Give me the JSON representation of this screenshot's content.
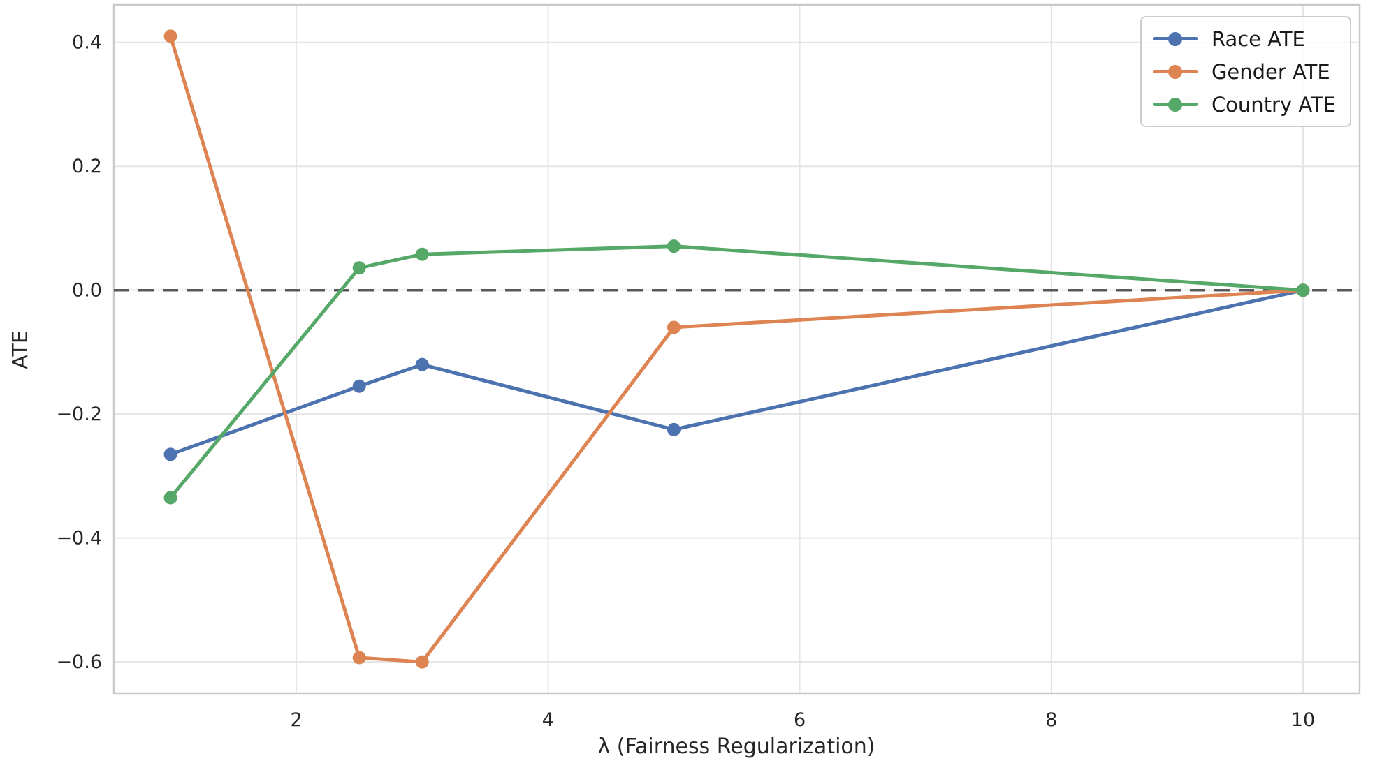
{
  "chart_data": {
    "type": "line",
    "x": [
      1,
      2.5,
      3,
      5,
      10
    ],
    "series": [
      {
        "name": "Race ATE",
        "color": "#4C72B0",
        "values": [
          -0.265,
          -0.155,
          -0.12,
          -0.225,
          0.0
        ]
      },
      {
        "name": "Gender ATE",
        "color": "#DD8452",
        "values": [
          0.41,
          -0.593,
          -0.6,
          -0.06,
          0.0
        ]
      },
      {
        "name": "Country ATE",
        "color": "#55A868",
        "values": [
          -0.335,
          0.036,
          0.058,
          0.071,
          0.0
        ]
      }
    ],
    "title": "",
    "xlabel": "λ (Fairness Regularization)",
    "ylabel": "ATE",
    "x_ticks": [
      {
        "value": 2,
        "label": "2"
      },
      {
        "value": 4,
        "label": "4"
      },
      {
        "value": 6,
        "label": "6"
      },
      {
        "value": 8,
        "label": "8"
      },
      {
        "value": 10,
        "label": "10"
      }
    ],
    "y_ticks": [
      {
        "value": -0.6,
        "label": "−0.6"
      },
      {
        "value": -0.4,
        "label": "−0.4"
      },
      {
        "value": -0.2,
        "label": "−0.2"
      },
      {
        "value": 0.0,
        "label": "0.0"
      },
      {
        "value": 0.2,
        "label": "0.2"
      },
      {
        "value": 0.4,
        "label": "0.4"
      }
    ],
    "xlim": [
      0.55,
      10.45
    ],
    "ylim": [
      -0.6505,
      0.4605
    ],
    "grid": true,
    "legend_position": "upper right",
    "marker": "o",
    "zero_line": {
      "y": 0.0,
      "style": "dashed",
      "color": "#595959"
    },
    "colors": {
      "grid": "#e5e5e5",
      "spine": "#c9c9c9",
      "tick_text": "#262626",
      "background": "#ffffff"
    }
  }
}
